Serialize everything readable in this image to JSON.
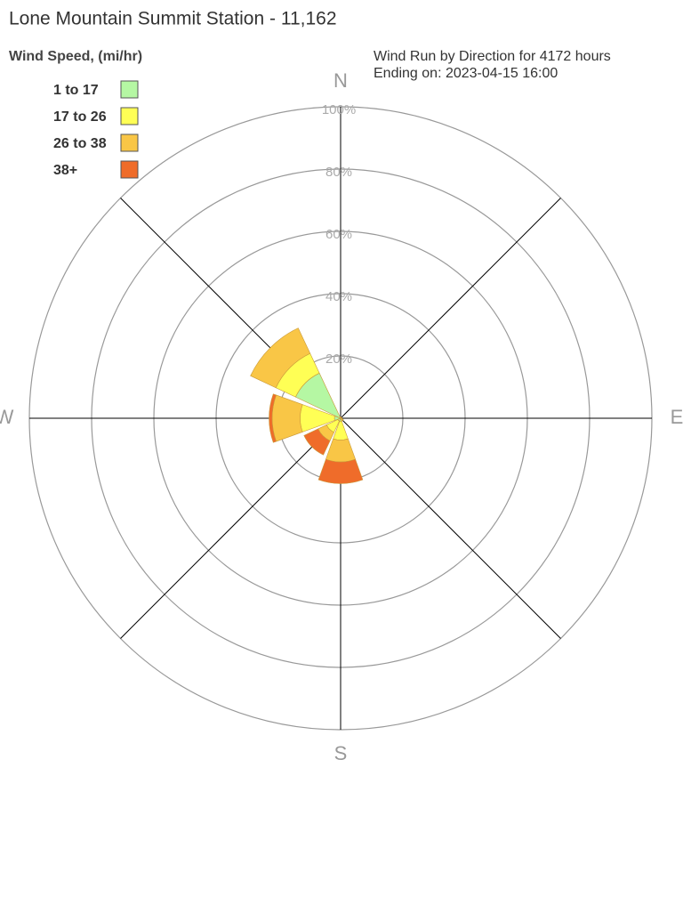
{
  "chart_data": {
    "type": "windrose",
    "title": "Lone Mountain Summit Station - 11,162",
    "subtitle": [
      "Wind Run by Direction for 4172 hours",
      "Ending on: 2023-04-15 16:00"
    ],
    "legend_title": "Wind Speed, (mi/hr)",
    "categories": [
      "N",
      null,
      "E",
      null,
      "S",
      null,
      "W",
      null
    ],
    "series": [
      {
        "name": "1 to 17",
        "color": "#b5f7a3",
        "values": [
          0.3,
          0.2,
          0.3,
          0.3,
          1,
          1,
          2,
          16
        ]
      },
      {
        "name": "17 to 26",
        "color": "#ffff55",
        "values": [
          0.2,
          0.1,
          0.2,
          0.4,
          6,
          4,
          11,
          7
        ]
      },
      {
        "name": "26 to 38",
        "color": "#f9c646",
        "values": [
          0,
          0,
          0,
          0.3,
          7,
          3,
          9,
          9
        ]
      },
      {
        "name": "38+",
        "color": "#ef6c2a",
        "values": [
          0,
          0,
          0,
          0,
          7,
          5,
          1,
          0
        ]
      }
    ],
    "ylim": [
      0,
      100
    ],
    "yticks": [
      {
        "value": 20,
        "label": "20%"
      },
      {
        "value": 40,
        "label": "40%"
      },
      {
        "value": 60,
        "label": "60%"
      },
      {
        "value": 80,
        "label": "80%"
      },
      {
        "value": 100,
        "label": "100%"
      }
    ],
    "grid": true
  }
}
